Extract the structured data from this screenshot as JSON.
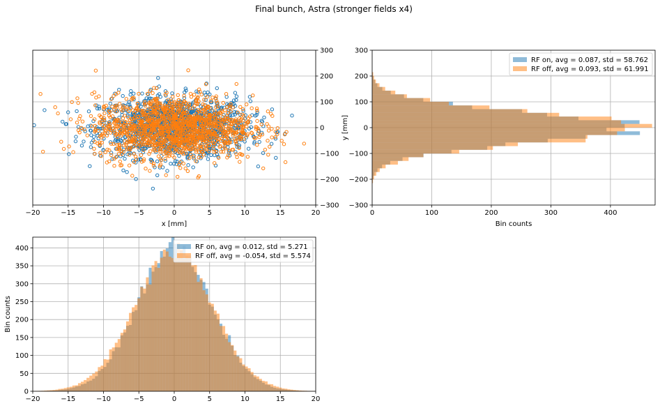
{
  "figure": {
    "title": "Final bunch, Astra (stronger fields x4)"
  },
  "colors": {
    "blue": "#1f77b4",
    "orange": "#ff7f0e"
  },
  "chart_data": [
    {
      "id": "scatter",
      "type": "scatter",
      "xlabel": "x [mm]",
      "ylabel": "",
      "xlim": [
        -20,
        20
      ],
      "ylim": [
        -300,
        300
      ],
      "xticks": [
        -20,
        -15,
        -10,
        -5,
        0,
        5,
        10,
        15,
        20
      ],
      "yticks": [
        -300,
        -200,
        -100,
        0,
        100,
        200,
        300
      ],
      "xtick_labels": [
        "−20",
        "−15",
        "−10",
        "−5",
        "0",
        "5",
        "10",
        "15",
        "20"
      ],
      "ytick_labels": [
        "−300",
        "−200",
        "−100",
        "0",
        "100",
        "200",
        "300"
      ],
      "grid": true,
      "series": [
        {
          "name": "RF on",
          "color": "#1f77b4",
          "x_std": 5.271,
          "y_std": 58.762,
          "x_mean": 0.012,
          "y_mean": 0.087,
          "n": 1400
        },
        {
          "name": "RF off",
          "color": "#ff7f0e",
          "x_std": 5.574,
          "y_std": 61.991,
          "x_mean": -0.054,
          "y_mean": 0.093,
          "n": 1400
        }
      ]
    },
    {
      "id": "yhist",
      "type": "bar",
      "orientation": "horizontal",
      "xlabel": "Bin counts",
      "ylabel": "y [mm]",
      "xlim": [
        0,
        475
      ],
      "ylim": [
        -300,
        300
      ],
      "xticks": [
        0,
        100,
        200,
        300,
        400
      ],
      "yticks": [
        -300,
        -200,
        -100,
        0,
        100,
        200,
        300
      ],
      "xtick_labels": [
        "0",
        "100",
        "200",
        "300",
        "400"
      ],
      "ytick_labels": [
        "−300",
        "−200",
        "−100",
        "0",
        "100",
        "200",
        "300"
      ],
      "grid": true,
      "legend_position": "top-right",
      "legend": [
        "RF on, avg = 0.087, std = 58.762",
        "RF off, avg = 0.093, std = 61.991"
      ],
      "series": [
        {
          "name": "RF on",
          "color": "#1f77b4",
          "mean": 0.087,
          "std": 58.762,
          "peak": 450,
          "ymin": -215,
          "ymax": 215,
          "bins": 30
        },
        {
          "name": "RF off",
          "color": "#ff7f0e",
          "mean": 0.093,
          "std": 61.991,
          "peak": 430,
          "ymin": -215,
          "ymax": 215,
          "bins": 30
        }
      ]
    },
    {
      "id": "xhist",
      "type": "bar",
      "orientation": "vertical",
      "xlabel": "",
      "ylabel": "Bin counts",
      "xlim": [
        -20,
        20
      ],
      "ylim": [
        0,
        430
      ],
      "xticks": [
        -20,
        -15,
        -10,
        -5,
        0,
        5,
        10,
        15,
        20
      ],
      "yticks": [
        0,
        50,
        100,
        150,
        200,
        250,
        300,
        350,
        400
      ],
      "xtick_labels": [
        "−20",
        "−15",
        "−10",
        "−5",
        "0",
        "5",
        "10",
        "15",
        "20"
      ],
      "ytick_labels": [
        "0",
        "50",
        "100",
        "150",
        "200",
        "250",
        "300",
        "350",
        "400"
      ],
      "grid": true,
      "legend_position": "top-right",
      "legend": [
        "RF on, avg = 0.012, std = 5.271",
        "RF off, avg = -0.054, std = 5.574"
      ],
      "series": [
        {
          "name": "RF on",
          "color": "#1f77b4",
          "mean": 0.012,
          "std": 5.271,
          "peak": 400,
          "xmin": -20,
          "xmax": 20,
          "bins": 100
        },
        {
          "name": "RF off",
          "color": "#ff7f0e",
          "mean": -0.054,
          "std": 5.574,
          "peak": 385,
          "xmin": -20,
          "xmax": 20,
          "bins": 100
        }
      ]
    }
  ]
}
